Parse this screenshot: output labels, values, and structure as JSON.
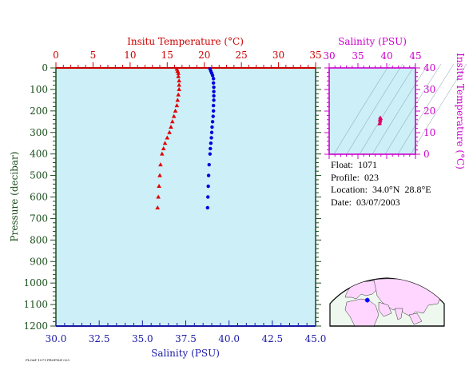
{
  "chart_data": [
    {
      "type": "scatter",
      "panel": "profile",
      "top_axis": {
        "label": "Insitu Temperature (°C)",
        "range": [
          0,
          35
        ],
        "ticks": [
          0,
          5,
          10,
          15,
          20,
          25,
          30,
          35
        ],
        "color": "#cc0000"
      },
      "bottom_axis": {
        "label": "Salinity (PSU)",
        "range": [
          30.0,
          45.0
        ],
        "ticks": [
          "30.0",
          "32.5",
          "35.0",
          "37.5",
          "40.0",
          "42.5",
          "45.0"
        ],
        "color": "#1a1aa6"
      },
      "y_axis": {
        "label": "Pressure (decibar)",
        "range": [
          0,
          1200
        ],
        "inverted": true,
        "ticks": [
          0,
          100,
          200,
          300,
          400,
          500,
          600,
          700,
          800,
          900,
          1000,
          1100,
          1200
        ],
        "color": "#1a4d1a"
      },
      "background": "#cdeff8",
      "series": [
        {
          "quantity": "temperature",
          "marker": "triangle",
          "color": "#e00000",
          "points": [
            [
              16.3,
              5
            ],
            [
              16.4,
              15
            ],
            [
              16.5,
              25
            ],
            [
              16.5,
              40
            ],
            [
              16.6,
              60
            ],
            [
              16.6,
              80
            ],
            [
              16.6,
              100
            ],
            [
              16.5,
              125
            ],
            [
              16.4,
              150
            ],
            [
              16.3,
              175
            ],
            [
              16.1,
              200
            ],
            [
              15.9,
              225
            ],
            [
              15.7,
              250
            ],
            [
              15.5,
              275
            ],
            [
              15.3,
              300
            ],
            [
              15.0,
              325
            ],
            [
              14.7,
              350
            ],
            [
              14.5,
              375
            ],
            [
              14.3,
              400
            ],
            [
              14.1,
              450
            ],
            [
              14.0,
              500
            ],
            [
              13.9,
              550
            ],
            [
              13.8,
              600
            ],
            [
              13.7,
              650
            ]
          ]
        },
        {
          "quantity": "salinity",
          "marker": "circle",
          "color": "#0000dd",
          "points": [
            [
              38.9,
              5
            ],
            [
              38.95,
              15
            ],
            [
              39.0,
              25
            ],
            [
              39.05,
              35
            ],
            [
              39.1,
              50
            ],
            [
              39.1,
              70
            ],
            [
              39.12,
              90
            ],
            [
              39.12,
              110
            ],
            [
              39.12,
              130
            ],
            [
              39.12,
              150
            ],
            [
              39.1,
              175
            ],
            [
              39.1,
              200
            ],
            [
              39.08,
              225
            ],
            [
              39.05,
              250
            ],
            [
              39.02,
              275
            ],
            [
              39.0,
              300
            ],
            [
              38.98,
              325
            ],
            [
              38.95,
              350
            ],
            [
              38.92,
              375
            ],
            [
              38.9,
              400
            ],
            [
              38.85,
              450
            ],
            [
              38.82,
              500
            ],
            [
              38.8,
              550
            ],
            [
              38.78,
              600
            ],
            [
              38.76,
              650
            ]
          ]
        }
      ]
    },
    {
      "type": "scatter",
      "panel": "ts_diagram",
      "x_axis": {
        "label": "Salinity (PSU)",
        "range": [
          30,
          45
        ],
        "ticks": [
          30,
          35,
          40,
          45
        ],
        "color": "#cc00cc"
      },
      "y_axis": {
        "label": "Insitu Temperature (°C)",
        "range": [
          0,
          40
        ],
        "ticks": [
          0,
          10,
          20,
          30,
          40
        ],
        "color": "#cc00cc"
      },
      "background": "#cdeff8",
      "points": [
        [
          38.7,
          14
        ],
        [
          38.8,
          14.5
        ],
        [
          38.85,
          15
        ],
        [
          38.9,
          15.5
        ],
        [
          38.95,
          16
        ],
        [
          39.0,
          16.5
        ],
        [
          38.9,
          17
        ],
        [
          38.8,
          16.8
        ],
        [
          38.75,
          15.8
        ],
        [
          38.85,
          14.2
        ]
      ]
    }
  ],
  "float_info": {
    "float": "Float:  1071",
    "profile": "Profile:  023",
    "location": "Location:  34.0°N  28.8°E",
    "date": "Date:  03/07/2003"
  },
  "map": {
    "land_color": "#ffd6ff",
    "ocean_color": "#eef8ee",
    "marker_color": "#0000ff",
    "float_lat": 34.0,
    "float_lon": 28.8
  },
  "footer": "FLOAT 1071 PROFILE 023"
}
